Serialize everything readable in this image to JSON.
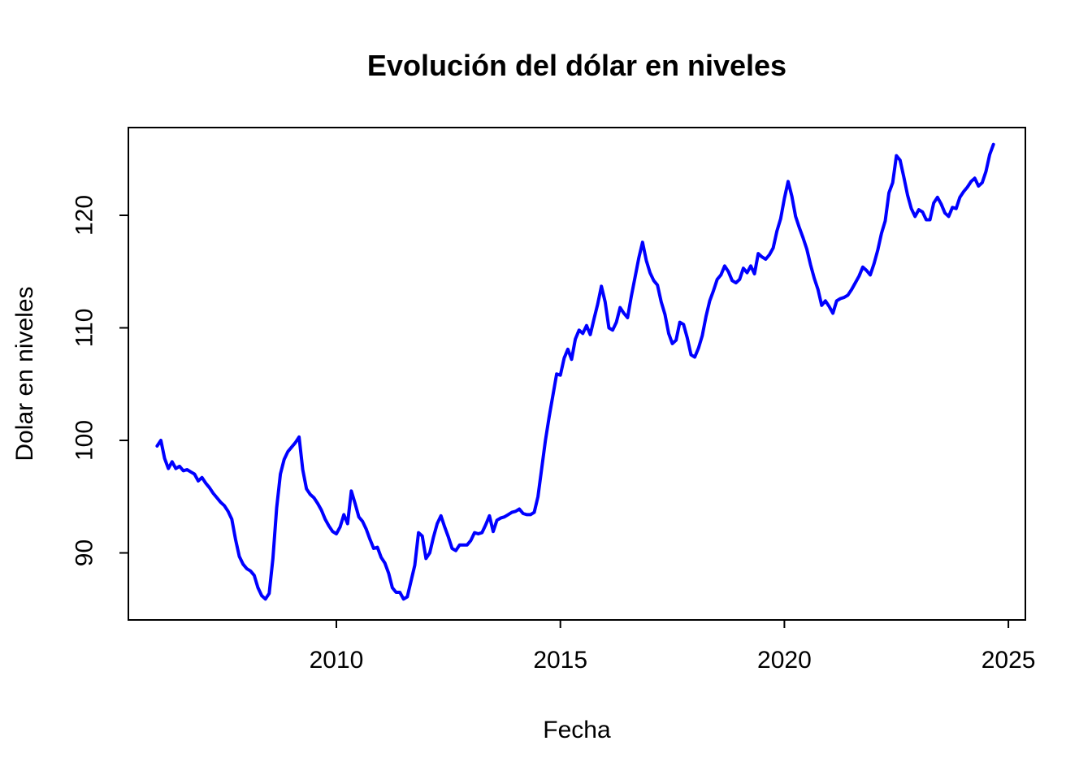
{
  "chart_data": {
    "type": "line",
    "title": "Evolución del dólar en niveles",
    "xlabel": "Fecha",
    "ylabel": "Dolar en niveles",
    "x_start_year": 2006.0,
    "frequency": "monthly",
    "x_axis": {
      "ticks": [
        2010,
        2015,
        2020,
        2025
      ],
      "range": [
        2005.6,
        2025.4
      ]
    },
    "y_axis": {
      "ticks": [
        90,
        100,
        110,
        120
      ],
      "range": [
        84.0,
        127.9
      ]
    },
    "grid": false,
    "legend": null,
    "line_color": "#0000FF",
    "background_color": "#FFFFFF",
    "series": [
      {
        "name": "Dolar en niveles",
        "values": [
          99.5,
          100.0,
          98.4,
          97.5,
          98.1,
          97.5,
          97.7,
          97.3,
          97.4,
          97.2,
          97.0,
          96.4,
          96.7,
          96.2,
          95.8,
          95.3,
          94.9,
          94.5,
          94.2,
          93.7,
          93.0,
          91.2,
          89.7,
          89.0,
          88.6,
          88.4,
          88.0,
          86.9,
          86.2,
          85.9,
          86.4,
          89.5,
          94.0,
          97.0,
          98.3,
          99.0,
          99.4,
          99.8,
          100.3,
          97.4,
          95.7,
          95.2,
          94.9,
          94.4,
          93.8,
          93.0,
          92.4,
          91.9,
          91.7,
          92.3,
          93.4,
          92.6,
          95.5,
          94.4,
          93.2,
          92.8,
          92.1,
          91.2,
          90.4,
          90.5,
          89.6,
          89.1,
          88.2,
          86.9,
          86.5,
          86.5,
          85.9,
          86.1,
          87.5,
          88.9,
          91.8,
          91.5,
          89.5,
          90.0,
          91.4,
          92.6,
          93.3,
          92.3,
          91.4,
          90.4,
          90.2,
          90.7,
          90.7,
          90.7,
          91.1,
          91.8,
          91.7,
          91.8,
          92.5,
          93.3,
          91.9,
          92.9,
          93.1,
          93.2,
          93.4,
          93.6,
          93.7,
          93.9,
          93.5,
          93.4,
          93.4,
          93.6,
          95.0,
          97.5,
          100.0,
          102.1,
          104.0,
          105.9,
          105.8,
          107.3,
          108.1,
          107.2,
          109.0,
          109.8,
          109.5,
          110.2,
          109.4,
          110.8,
          112.1,
          113.7,
          112.3,
          110.0,
          109.8,
          110.5,
          111.8,
          111.3,
          110.9,
          112.8,
          114.5,
          116.2,
          117.6,
          116.0,
          114.9,
          114.2,
          113.8,
          112.3,
          111.2,
          109.5,
          108.6,
          108.9,
          110.5,
          110.3,
          109.1,
          107.6,
          107.4,
          108.2,
          109.3,
          111.0,
          112.4,
          113.3,
          114.3,
          114.7,
          115.5,
          115.0,
          114.2,
          114.0,
          114.3,
          115.3,
          114.9,
          115.5,
          114.8,
          116.6,
          116.3,
          116.1,
          116.5,
          117.1,
          118.6,
          119.7,
          121.5,
          123.0,
          121.7,
          119.9,
          118.9,
          118.0,
          117.0,
          115.6,
          114.4,
          113.4,
          112.0,
          112.4,
          111.9,
          111.3,
          112.4,
          112.6,
          112.7,
          112.9,
          113.4,
          114.0,
          114.6,
          115.4,
          115.1,
          114.7,
          115.7,
          116.9,
          118.4,
          119.5,
          122.0,
          122.9,
          125.3,
          124.9,
          123.4,
          121.8,
          120.6,
          119.9,
          120.5,
          120.3,
          119.6,
          119.6,
          121.1,
          121.6,
          121.0,
          120.2,
          119.9,
          120.7,
          120.6,
          121.6,
          122.1,
          122.5,
          123.0,
          123.3,
          122.6,
          122.9,
          123.9,
          125.4,
          126.3
        ]
      }
    ]
  }
}
